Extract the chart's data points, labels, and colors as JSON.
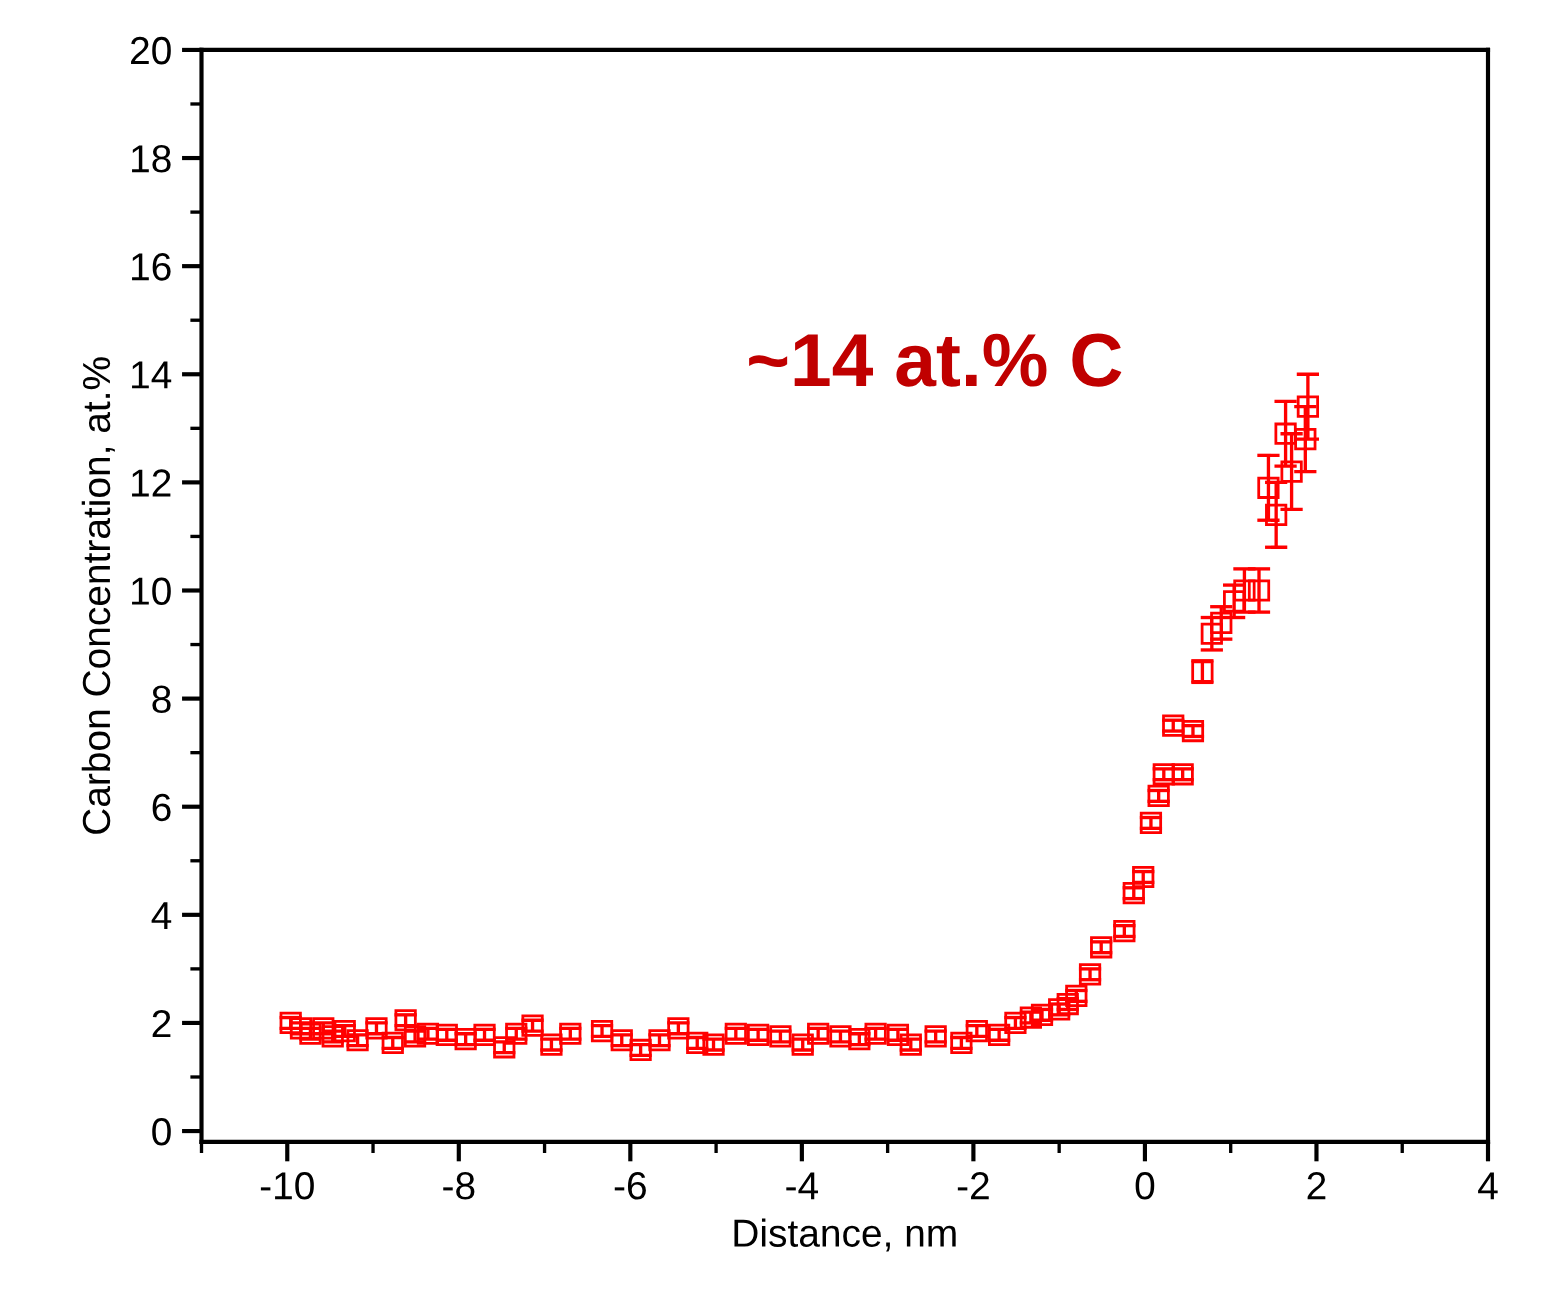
{
  "chart_data": {
    "type": "scatter",
    "xlabel": "Distance, nm",
    "ylabel": "Carbon Concentration, at.%",
    "annotations": [
      "~14 at.% C"
    ],
    "x": [
      -9.96,
      -9.84,
      -9.73,
      -9.58,
      -9.47,
      -9.33,
      -9.18,
      -8.96,
      -8.77,
      -8.62,
      -8.51,
      -8.36,
      -8.14,
      -7.92,
      -7.7,
      -7.47,
      -7.33,
      -7.14,
      -6.92,
      -6.7,
      -6.33,
      -6.1,
      -5.88,
      -5.66,
      -5.44,
      -5.22,
      -5.03,
      -4.77,
      -4.51,
      -4.25,
      -3.99,
      -3.81,
      -3.55,
      -3.33,
      -3.14,
      -2.88,
      -2.73,
      -2.44,
      -2.14,
      -1.96,
      -1.7,
      -1.51,
      -1.33,
      -1.2,
      -1.0,
      -0.9,
      -0.8,
      -0.64,
      -0.51,
      -0.24,
      -0.13,
      -0.02,
      0.07,
      0.16,
      0.22,
      0.33,
      0.44,
      0.56,
      0.67,
      0.78,
      0.89,
      1.04,
      1.16,
      1.33,
      1.44,
      1.53,
      1.64,
      1.71,
      1.87,
      1.9
    ],
    "series": [
      {
        "color": "#ff0000",
        "values": [
          2.0,
          1.9,
          1.8,
          1.9,
          1.75,
          1.85,
          1.68,
          1.9,
          1.63,
          2.05,
          1.75,
          1.8,
          1.78,
          1.7,
          1.78,
          1.55,
          1.8,
          1.95,
          1.6,
          1.8,
          1.85,
          1.68,
          1.5,
          1.68,
          1.9,
          1.63,
          1.6,
          1.8,
          1.78,
          1.75,
          1.6,
          1.8,
          1.75,
          1.7,
          1.8,
          1.78,
          1.6,
          1.75,
          1.63,
          1.85,
          1.78,
          2.0,
          2.1,
          2.15,
          2.25,
          2.35,
          2.5,
          2.9,
          3.4,
          3.7,
          4.4,
          4.7,
          5.7,
          6.2,
          6.6,
          7.5,
          6.6,
          7.4,
          8.5,
          9.2,
          9.4,
          9.8,
          10.0,
          10.0,
          11.9,
          11.4,
          12.9,
          12.2,
          12.8,
          13.4
        ],
        "errors": [
          0.1,
          0.1,
          0.1,
          0.1,
          0.1,
          0.1,
          0.1,
          0.1,
          0.1,
          0.1,
          0.1,
          0.1,
          0.1,
          0.1,
          0.1,
          0.1,
          0.1,
          0.1,
          0.1,
          0.1,
          0.1,
          0.1,
          0.1,
          0.1,
          0.1,
          0.1,
          0.1,
          0.1,
          0.1,
          0.1,
          0.1,
          0.1,
          0.1,
          0.1,
          0.1,
          0.1,
          0.1,
          0.1,
          0.1,
          0.1,
          0.1,
          0.1,
          0.1,
          0.1,
          0.1,
          0.1,
          0.1,
          0.1,
          0.1,
          0.1,
          0.1,
          0.1,
          0.1,
          0.1,
          0.1,
          0.1,
          0.1,
          0.1,
          0.2,
          0.3,
          0.3,
          0.3,
          0.4,
          0.4,
          0.6,
          0.6,
          0.6,
          0.7,
          0.6,
          0.6
        ]
      }
    ],
    "xlim": [
      -11,
      4
    ],
    "xticks": [
      -10,
      -8,
      -6,
      -4,
      -2,
      0,
      2,
      4
    ],
    "ylim": [
      -0.2,
      20
    ],
    "yticks": [
      0,
      2,
      4,
      6,
      8,
      10,
      12,
      14,
      16,
      18,
      20
    ],
    "marker": "square",
    "grid": false,
    "legend": false
  }
}
